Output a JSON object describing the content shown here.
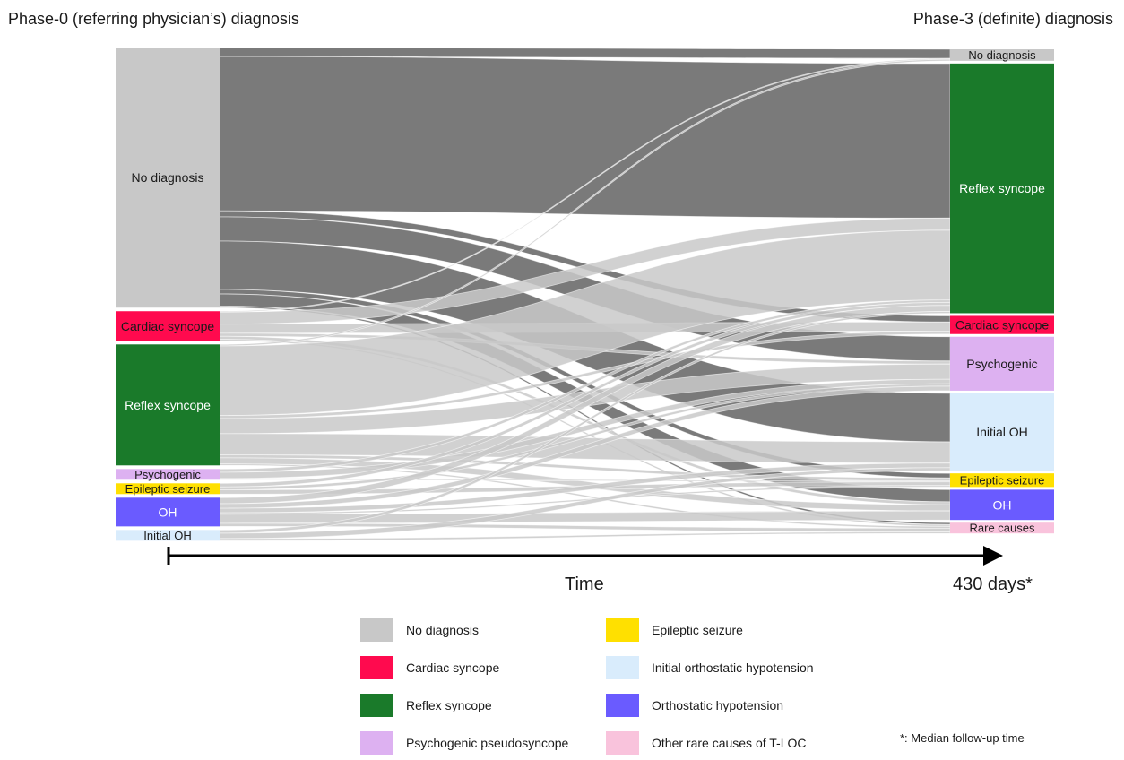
{
  "header": {
    "left_title": "Phase-0 (referring physician’s) diagnosis",
    "right_title": "Phase-3 (definite) diagnosis"
  },
  "axis": {
    "time_label": "Time",
    "end_label": "430 days*"
  },
  "colors": {
    "no_diagnosis": "#c8c8c8",
    "cardiac_syncope": "#ff0a4e",
    "reflex_syncope": "#1a7a2a",
    "psychogenic": "#ddb1f1",
    "epileptic_seizure": "#ffe000",
    "oh": "#6a5bff",
    "initial_oh": "#d9ecfc",
    "rare_causes": "#f9c3dc",
    "flow_dark": "#6f6f6f",
    "flow_light": "#c9c9c9"
  },
  "nodes_left": [
    {
      "id": "L_nd",
      "label": "No diagnosis",
      "color": "no_diagnosis",
      "text": "dark"
    },
    {
      "id": "L_cs",
      "label": "Cardiac syncope",
      "color": "cardiac_syncope",
      "text": "dark"
    },
    {
      "id": "L_rs",
      "label": "Reflex syncope",
      "color": "reflex_syncope",
      "text": "light"
    },
    {
      "id": "L_ps",
      "label": "Psychogenic",
      "color": "psychogenic",
      "text": "dark"
    },
    {
      "id": "L_es",
      "label": "Epileptic seizure",
      "color": "epileptic_seizure",
      "text": "dark"
    },
    {
      "id": "L_oh",
      "label": "OH",
      "color": "oh",
      "text": "light"
    },
    {
      "id": "L_ioh",
      "label": "Initial OH",
      "color": "initial_oh",
      "text": "dark"
    }
  ],
  "nodes_right": [
    {
      "id": "R_nd",
      "label": "No diagnosis",
      "color": "no_diagnosis",
      "text": "dark"
    },
    {
      "id": "R_rs",
      "label": "Reflex syncope",
      "color": "reflex_syncope",
      "text": "light"
    },
    {
      "id": "R_cs",
      "label": "Cardiac syncope",
      "color": "cardiac_syncope",
      "text": "dark"
    },
    {
      "id": "R_ps",
      "label": "Psychogenic",
      "color": "psychogenic",
      "text": "dark"
    },
    {
      "id": "R_ioh",
      "label": "Initial OH",
      "color": "initial_oh",
      "text": "dark"
    },
    {
      "id": "R_es",
      "label": "Epileptic seizure",
      "color": "epileptic_seizure",
      "text": "dark"
    },
    {
      "id": "R_oh",
      "label": "OH",
      "color": "oh",
      "text": "light"
    },
    {
      "id": "R_rc",
      "label": "Rare causes",
      "color": "rare_causes",
      "text": "dark"
    }
  ],
  "flows": [
    {
      "from": "L_nd",
      "to": "R_nd",
      "value": 3
    },
    {
      "from": "L_nd",
      "to": "R_rs",
      "value": 51
    },
    {
      "from": "L_nd",
      "to": "R_cs",
      "value": 2
    },
    {
      "from": "L_nd",
      "to": "R_ps",
      "value": 8
    },
    {
      "from": "L_nd",
      "to": "R_ioh",
      "value": 16
    },
    {
      "from": "L_nd",
      "to": "R_es",
      "value": 1.5
    },
    {
      "from": "L_nd",
      "to": "R_oh",
      "value": 4
    },
    {
      "from": "L_nd",
      "to": "R_rc",
      "value": 0.5
    },
    {
      "from": "L_cs",
      "to": "R_nd",
      "value": 0.3
    },
    {
      "from": "L_cs",
      "to": "R_rs",
      "value": 4
    },
    {
      "from": "L_cs",
      "to": "R_cs",
      "value": 3
    },
    {
      "from": "L_cs",
      "to": "R_ps",
      "value": 1
    },
    {
      "from": "L_cs",
      "to": "R_oh",
      "value": 1
    },
    {
      "from": "L_cs",
      "to": "R_rc",
      "value": 0.5
    },
    {
      "from": "L_rs",
      "to": "R_nd",
      "value": 0.5
    },
    {
      "from": "L_rs",
      "to": "R_rs",
      "value": 23
    },
    {
      "from": "L_rs",
      "to": "R_cs",
      "value": 1
    },
    {
      "from": "L_rs",
      "to": "R_ps",
      "value": 5
    },
    {
      "from": "L_rs",
      "to": "R_ioh",
      "value": 7
    },
    {
      "from": "L_rs",
      "to": "R_es",
      "value": 1
    },
    {
      "from": "L_rs",
      "to": "R_oh",
      "value": 2
    },
    {
      "from": "L_rs",
      "to": "R_rc",
      "value": 0.5
    },
    {
      "from": "L_ps",
      "to": "R_rs",
      "value": 0.8
    },
    {
      "from": "L_ps",
      "to": "R_ps",
      "value": 1.5
    },
    {
      "from": "L_ps",
      "to": "R_es",
      "value": 0.3
    },
    {
      "from": "L_es",
      "to": "R_rs",
      "value": 1
    },
    {
      "from": "L_es",
      "to": "R_ps",
      "value": 0.8
    },
    {
      "from": "L_es",
      "to": "R_es",
      "value": 1.2
    },
    {
      "from": "L_oh",
      "to": "R_rs",
      "value": 2
    },
    {
      "from": "L_oh",
      "to": "R_ps",
      "value": 1.5
    },
    {
      "from": "L_oh",
      "to": "R_ioh",
      "value": 1.5
    },
    {
      "from": "L_oh",
      "to": "R_es",
      "value": 0.5
    },
    {
      "from": "L_oh",
      "to": "R_oh",
      "value": 3
    },
    {
      "from": "L_oh",
      "to": "R_rc",
      "value": 1
    },
    {
      "from": "L_ioh",
      "to": "R_rs",
      "value": 0.6
    },
    {
      "from": "L_ioh",
      "to": "R_ioh",
      "value": 1
    },
    {
      "from": "L_ioh",
      "to": "R_rc",
      "value": 0.4
    }
  ],
  "legend": [
    {
      "label": "No diagnosis",
      "color": "no_diagnosis"
    },
    {
      "label": "Cardiac syncope",
      "color": "cardiac_syncope"
    },
    {
      "label": "Reflex syncope",
      "color": "reflex_syncope"
    },
    {
      "label": "Psychogenic pseudosyncope",
      "color": "psychogenic"
    },
    {
      "label": "Epileptic seizure",
      "color": "epileptic_seizure"
    },
    {
      "label": "Initial orthostatic hypotension",
      "color": "initial_oh"
    },
    {
      "label": "Orthostatic hypotension",
      "color": "oh"
    },
    {
      "label": "Other rare causes of T-LOC",
      "color": "rare_causes"
    }
  ],
  "footnote": "*: Median follow-up time"
}
